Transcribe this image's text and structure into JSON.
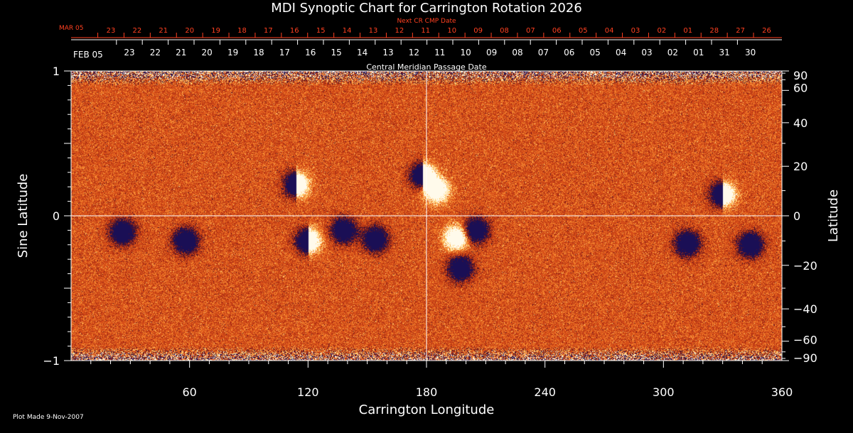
{
  "chart_data": {
    "type": "heatmap",
    "title": "MDI Synoptic Chart for Carrington Rotation 2026",
    "xlabel": "Carrington Longitude",
    "ylabel_left": "Sine Latitude",
    "ylabel_right": "Latitude",
    "xlim": [
      0,
      360
    ],
    "ylim_sine": [
      -1,
      1
    ],
    "x_ticks": [
      "60",
      "120",
      "180",
      "240",
      "300",
      "360"
    ],
    "x_tick_values": [
      60,
      120,
      180,
      240,
      300,
      360
    ],
    "y_left_ticks": [
      {
        "value": 1,
        "label": "1"
      },
      {
        "value": 0,
        "label": "0"
      },
      {
        "value": -1,
        "label": "−1"
      }
    ],
    "y_right_ticks": [
      {
        "value": 90,
        "label": "90"
      },
      {
        "value": 60,
        "label": "60"
      },
      {
        "value": 40,
        "label": "40"
      },
      {
        "value": 20,
        "label": "20"
      },
      {
        "value": 0,
        "label": "0"
      },
      {
        "value": -20,
        "label": "−20"
      },
      {
        "value": -40,
        "label": "−40"
      },
      {
        "value": -60,
        "label": "−60"
      },
      {
        "value": -90,
        "label": "−90"
      }
    ],
    "top_axis_label": "Central Meridian Passage Date",
    "top_axis_month": "FEB 05",
    "top_axis_dates": [
      "23",
      "22",
      "21",
      "20",
      "19",
      "18",
      "17",
      "16",
      "15",
      "14",
      "13",
      "12",
      "11",
      "10",
      "09",
      "08",
      "07",
      "06",
      "05",
      "04",
      "03",
      "02",
      "01",
      "31",
      "30"
    ],
    "next_axis_label": "Next CR CMP Date",
    "next_axis_month": "MAR 05",
    "next_axis_dates": [
      "23",
      "22",
      "21",
      "20",
      "19",
      "18",
      "17",
      "16",
      "15",
      "14",
      "13",
      "12",
      "11",
      "10",
      "09",
      "08",
      "07",
      "06",
      "05",
      "04",
      "03",
      "02",
      "01",
      "28",
      "27",
      "26"
    ],
    "active_regions": [
      {
        "lon": 114,
        "sinlat": 0.22,
        "polarity": "mixed"
      },
      {
        "lon": 178,
        "sinlat": 0.28,
        "polarity": "mixed"
      },
      {
        "lon": 185,
        "sinlat": 0.18,
        "polarity": "positive"
      },
      {
        "lon": 58,
        "sinlat": -0.17,
        "polarity": "negative"
      },
      {
        "lon": 120,
        "sinlat": -0.17,
        "polarity": "mixed"
      },
      {
        "lon": 138,
        "sinlat": -0.1,
        "polarity": "negative"
      },
      {
        "lon": 154,
        "sinlat": -0.16,
        "polarity": "negative"
      },
      {
        "lon": 195,
        "sinlat": -0.15,
        "polarity": "positive"
      },
      {
        "lon": 205,
        "sinlat": -0.1,
        "polarity": "negative"
      },
      {
        "lon": 197,
        "sinlat": -0.36,
        "polarity": "negative"
      },
      {
        "lon": 26,
        "sinlat": -0.11,
        "polarity": "negative"
      },
      {
        "lon": 312,
        "sinlat": -0.19,
        "polarity": "negative"
      },
      {
        "lon": 330,
        "sinlat": 0.15,
        "polarity": "mixed"
      },
      {
        "lon": 344,
        "sinlat": -0.2,
        "polarity": "negative"
      }
    ],
    "colors": {
      "background": "#000000",
      "field_base": "#d8501c",
      "positive": "#ffffff",
      "negative": "#1a0f55",
      "next_axis": "#ff4020",
      "grid": "#ffffff"
    },
    "grid": "cross at lon 180 and latitude 0"
  },
  "footer": {
    "plot_made": "Plot Made  9-Nov-2007"
  }
}
